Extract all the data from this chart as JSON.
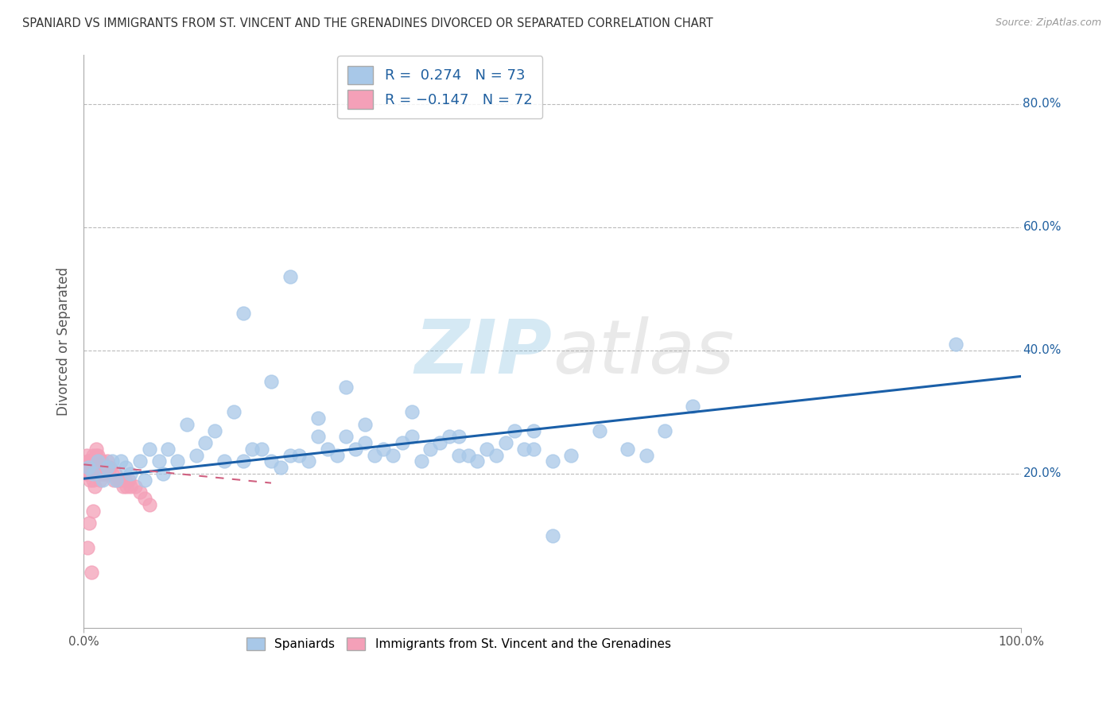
{
  "title": "SPANIARD VS IMMIGRANTS FROM ST. VINCENT AND THE GRENADINES DIVORCED OR SEPARATED CORRELATION CHART",
  "source": "Source: ZipAtlas.com",
  "ylabel": "Divorced or Separated",
  "xlim": [
    0.0,
    1.0
  ],
  "ylim": [
    -0.05,
    0.88
  ],
  "blue_color": "#A8C8E8",
  "pink_color": "#F4A0B8",
  "blue_line_color": "#1A5FA8",
  "pink_line_color": "#D06080",
  "legend_R1": "R =  0.274",
  "legend_N1": "N = 73",
  "legend_R2": "R = -0.147",
  "legend_N2": "N = 72",
  "watermark_zip": "ZIP",
  "watermark_atlas": "atlas",
  "blue_scatter_x": [
    0.005,
    0.01,
    0.015,
    0.02,
    0.025,
    0.03,
    0.035,
    0.04,
    0.045,
    0.05,
    0.06,
    0.065,
    0.07,
    0.08,
    0.085,
    0.09,
    0.1,
    0.11,
    0.12,
    0.13,
    0.14,
    0.15,
    0.16,
    0.17,
    0.18,
    0.19,
    0.2,
    0.21,
    0.22,
    0.23,
    0.24,
    0.25,
    0.26,
    0.27,
    0.28,
    0.29,
    0.3,
    0.31,
    0.32,
    0.33,
    0.34,
    0.35,
    0.36,
    0.37,
    0.38,
    0.39,
    0.4,
    0.41,
    0.42,
    0.43,
    0.44,
    0.45,
    0.46,
    0.47,
    0.48,
    0.5,
    0.52,
    0.55,
    0.58,
    0.6,
    0.62,
    0.65,
    0.2,
    0.25,
    0.3,
    0.17,
    0.22,
    0.28,
    0.35,
    0.4,
    0.5,
    0.93,
    0.48
  ],
  "blue_scatter_y": [
    0.21,
    0.2,
    0.22,
    0.19,
    0.21,
    0.22,
    0.19,
    0.22,
    0.21,
    0.2,
    0.22,
    0.19,
    0.24,
    0.22,
    0.2,
    0.24,
    0.22,
    0.28,
    0.23,
    0.25,
    0.27,
    0.22,
    0.3,
    0.22,
    0.24,
    0.24,
    0.22,
    0.21,
    0.23,
    0.23,
    0.22,
    0.26,
    0.24,
    0.23,
    0.26,
    0.24,
    0.25,
    0.23,
    0.24,
    0.23,
    0.25,
    0.26,
    0.22,
    0.24,
    0.25,
    0.26,
    0.23,
    0.23,
    0.22,
    0.24,
    0.23,
    0.25,
    0.27,
    0.24,
    0.24,
    0.22,
    0.23,
    0.27,
    0.24,
    0.23,
    0.27,
    0.31,
    0.35,
    0.29,
    0.28,
    0.46,
    0.52,
    0.34,
    0.3,
    0.26,
    0.1,
    0.41,
    0.27
  ],
  "pink_scatter_x": [
    0.003,
    0.005,
    0.006,
    0.007,
    0.008,
    0.009,
    0.01,
    0.01,
    0.011,
    0.012,
    0.012,
    0.013,
    0.013,
    0.014,
    0.014,
    0.015,
    0.015,
    0.016,
    0.016,
    0.017,
    0.017,
    0.018,
    0.018,
    0.019,
    0.019,
    0.02,
    0.02,
    0.021,
    0.022,
    0.023,
    0.024,
    0.025,
    0.026,
    0.027,
    0.028,
    0.03,
    0.032,
    0.034,
    0.036,
    0.038,
    0.04,
    0.042,
    0.044,
    0.046,
    0.048,
    0.05,
    0.055,
    0.06,
    0.065,
    0.07,
    0.003,
    0.004,
    0.005,
    0.006,
    0.007,
    0.008,
    0.009,
    0.01,
    0.011,
    0.012,
    0.013,
    0.014,
    0.015,
    0.016,
    0.017,
    0.018,
    0.019,
    0.02,
    0.004,
    0.006,
    0.008,
    0.01
  ],
  "pink_scatter_y": [
    0.2,
    0.22,
    0.21,
    0.19,
    0.22,
    0.2,
    0.23,
    0.19,
    0.21,
    0.22,
    0.18,
    0.21,
    0.24,
    0.2,
    0.22,
    0.21,
    0.23,
    0.2,
    0.22,
    0.2,
    0.21,
    0.22,
    0.19,
    0.21,
    0.22,
    0.2,
    0.21,
    0.21,
    0.2,
    0.21,
    0.2,
    0.22,
    0.21,
    0.2,
    0.21,
    0.2,
    0.19,
    0.2,
    0.19,
    0.19,
    0.19,
    0.18,
    0.19,
    0.18,
    0.19,
    0.18,
    0.18,
    0.17,
    0.16,
    0.15,
    0.23,
    0.21,
    0.22,
    0.2,
    0.21,
    0.2,
    0.21,
    0.21,
    0.22,
    0.21,
    0.23,
    0.22,
    0.22,
    0.21,
    0.21,
    0.2,
    0.21,
    0.21,
    0.08,
    0.12,
    0.04,
    0.14
  ],
  "blue_trend_x": [
    0.0,
    1.0
  ],
  "blue_trend_y": [
    0.192,
    0.358
  ],
  "pink_trend_x": [
    0.0,
    0.2
  ],
  "pink_trend_y": [
    0.215,
    0.185
  ]
}
